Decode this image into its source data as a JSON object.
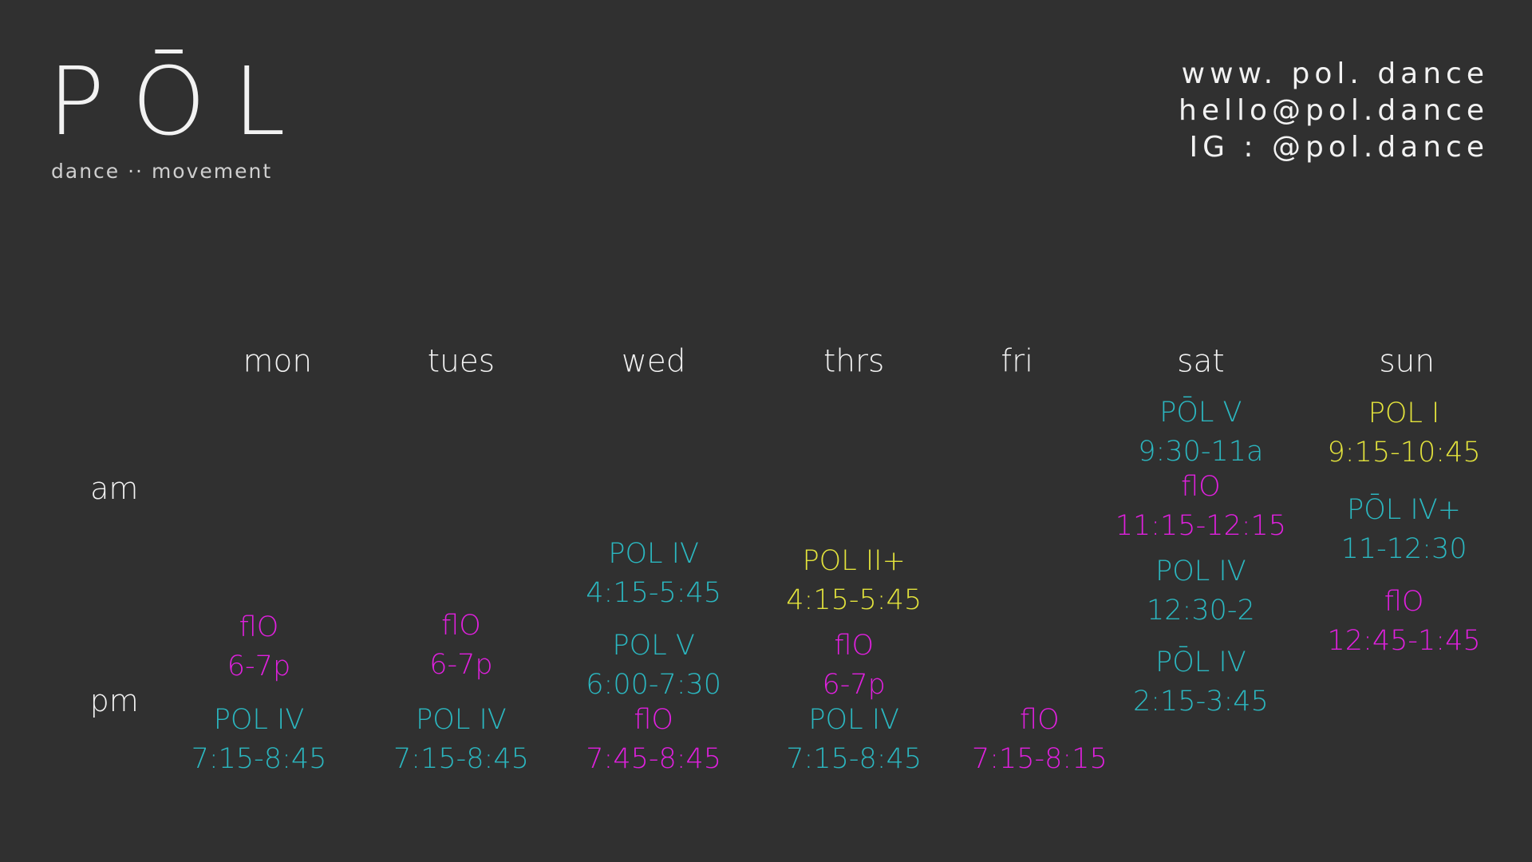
{
  "header": {
    "logo": "PŌL",
    "tagline": "dance ·· movement",
    "contacts": [
      "www. pol. dance",
      "hello@pol.dance",
      "IG :  @pol.dance"
    ]
  },
  "periods": [
    "am",
    "pm"
  ],
  "schedule": [
    {
      "day": "mon",
      "classes": [
        {
          "name": "flO",
          "time": "6-7p",
          "color": "#e020de"
        },
        {
          "name": "POL IV",
          "time": "7:15-8:45",
          "color": "#2bb7c0"
        }
      ]
    },
    {
      "day": "tues",
      "classes": [
        {
          "name": "flO",
          "time": "6-7p",
          "color": "#e020de"
        },
        {
          "name": "POL IV",
          "time": "7:15-8:45",
          "color": "#2bb7c0"
        }
      ]
    },
    {
      "day": "wed",
      "classes": [
        {
          "name": "POL IV",
          "time": "4:15-5:45",
          "color": "#2bb7c0"
        },
        {
          "name": "POL V",
          "time": "6:00-7:30",
          "color": "#2bb7c0"
        },
        {
          "name": "flO",
          "time": "7:45-8:45",
          "color": "#e020de"
        }
      ]
    },
    {
      "day": "thrs",
      "classes": [
        {
          "name": "POL II+",
          "time": "4:15-5:45",
          "color": "#e3e33c"
        },
        {
          "name": "flO",
          "time": "6-7p",
          "color": "#e020de"
        },
        {
          "name": "POL IV",
          "time": "7:15-8:45",
          "color": "#2bb7c0"
        }
      ]
    },
    {
      "day": "fri",
      "classes": [
        {
          "name": "flO",
          "time": "7:15-8:15",
          "color": "#e020de"
        }
      ]
    },
    {
      "day": "sat",
      "classes": [
        {
          "name": "PŌL V",
          "time": "9:30-11a",
          "color": "#2bb7c0"
        },
        {
          "name": "flO",
          "time": "11:15-12:15",
          "color": "#e020de"
        },
        {
          "name": "POL IV",
          "time": "12:30-2",
          "color": "#2bb7c0"
        },
        {
          "name": "PŌL IV",
          "time": "2:15-3:45",
          "color": "#2bb7c0"
        }
      ]
    },
    {
      "day": "sun",
      "classes": [
        {
          "name": "POL I",
          "time": "9:15-10:45",
          "color": "#e3e33c"
        },
        {
          "name": "PŌL IV+",
          "time": "11-12:30",
          "color": "#2bb7c0"
        },
        {
          "name": "flO",
          "time": "12:45-1:45",
          "color": "#e020de"
        }
      ]
    }
  ]
}
